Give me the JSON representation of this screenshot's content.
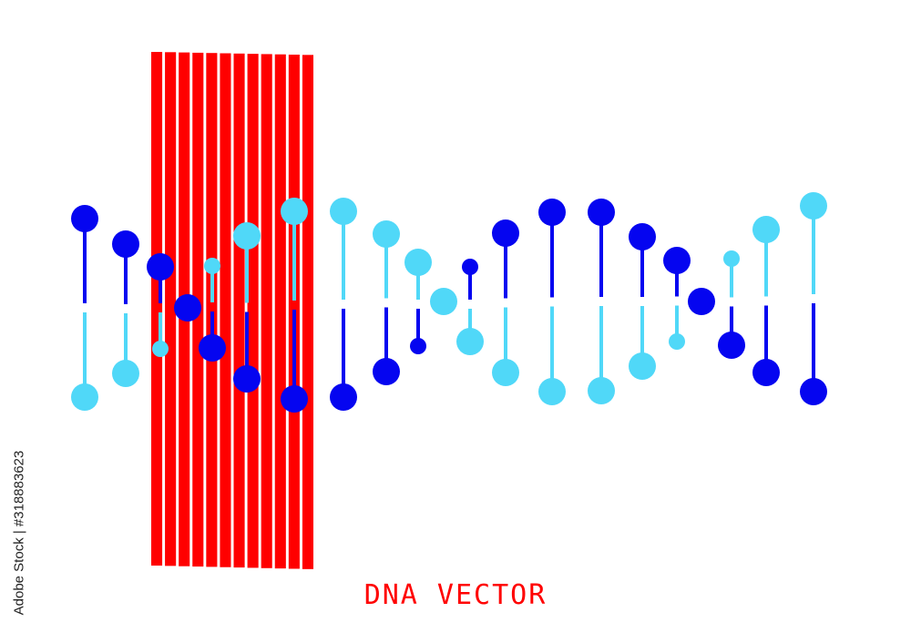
{
  "title": "DNA VECTOR",
  "stock_id": "Adobe Stock | #318883623",
  "watermark": "Adobe Stock",
  "colors": {
    "accent_red": "#ff0000",
    "dark_blue": "#0505f0",
    "light_blue": "#50d8f8",
    "background": "#ffffff"
  },
  "icons": [
    "dna-helix-illustration",
    "red-stripes-block"
  ]
}
